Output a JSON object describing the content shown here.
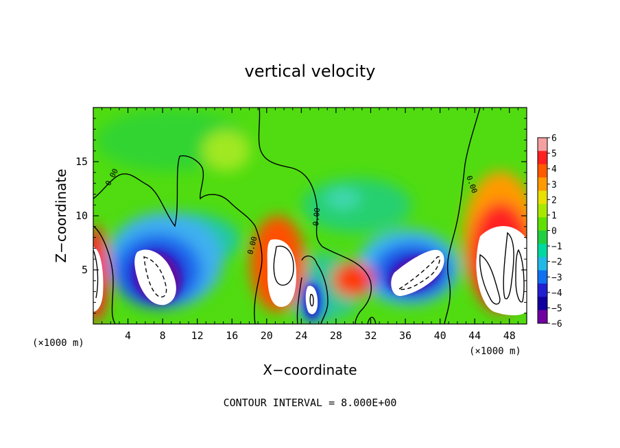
{
  "chart_data": {
    "type": "heatmap",
    "title": "vertical velocity",
    "xlabel": "X−coordinate",
    "ylabel": "Z−coordinate",
    "x_unit": "(×1000 m)",
    "xlim": [
      0,
      50
    ],
    "ylim": [
      0,
      20
    ],
    "x_ticks": [
      4,
      8,
      12,
      16,
      20,
      24,
      28,
      32,
      36,
      40,
      44,
      48
    ],
    "y_ticks": [
      5,
      10,
      15
    ],
    "footer": "CONTOUR INTERVAL = 8.000E+00",
    "zero_contour_label": "0.00",
    "colorbar": {
      "ticks": [
        6,
        5,
        4,
        3,
        2,
        1,
        0,
        -1,
        -2,
        -3,
        -4,
        -5,
        -6
      ],
      "labels": [
        "6",
        "5",
        "4",
        "3",
        "2",
        "1",
        "0",
        "−1",
        "−2",
        "−3",
        "−4",
        "−5",
        "−6"
      ],
      "colors": [
        "#f4a0a0",
        "#ff2020",
        "#ff5a00",
        "#ff9a00",
        "#e8e000",
        "#a8e800",
        "#60e000",
        "#20d040",
        "#00d8a0",
        "#20b8e8",
        "#1070f0",
        "#2020d0",
        "#1000a0",
        "#7000a0"
      ]
    },
    "features": [
      {
        "sign": "up",
        "x": 0.6,
        "z": 4.5,
        "peak": 10
      },
      {
        "sign": "down",
        "x": 7.5,
        "z": 5.5,
        "peak": -10
      },
      {
        "sign": "up",
        "x": 21.5,
        "z": 5.5,
        "peak": 10
      },
      {
        "sign": "down",
        "x": 25.0,
        "z": 2.2,
        "peak": -8
      },
      {
        "sign": "up",
        "x": 29.5,
        "z": 4.0,
        "peak": 4
      },
      {
        "sign": "down",
        "x": 37.0,
        "z": 5.0,
        "peak": -10
      },
      {
        "sign": "up",
        "x": 47.0,
        "z": 5.5,
        "peak": 10
      }
    ]
  }
}
